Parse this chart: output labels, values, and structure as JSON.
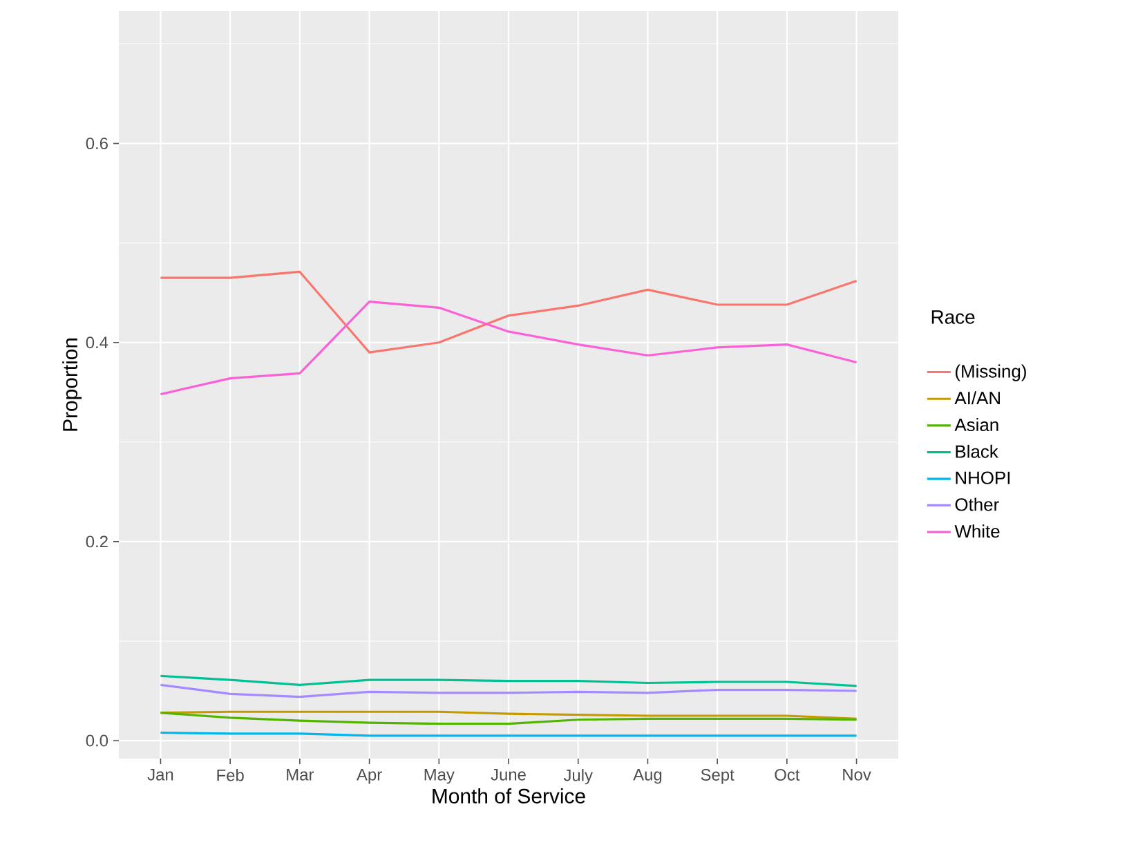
{
  "chart_data": {
    "type": "line",
    "xlabel": "Month of Service",
    "ylabel": "Proportion",
    "legend_title": "Race",
    "categories": [
      "Jan",
      "Feb",
      "Mar",
      "Apr",
      "May",
      "June",
      "July",
      "Aug",
      "Sept",
      "Oct",
      "Nov"
    ],
    "ylim": [
      -0.018,
      0.733
    ],
    "yticks": [
      {
        "value": 0,
        "label": "0.0"
      },
      {
        "value": 0.2,
        "label": "0.2"
      },
      {
        "value": 0.4,
        "label": "0.4"
      },
      {
        "value": 0.6,
        "label": "0.6"
      }
    ],
    "grid": true,
    "legend": "right",
    "marker": "none",
    "line_style": "solid",
    "series": [
      {
        "name": "(Missing)",
        "color": "#f8766d",
        "values": [
          0.465,
          0.465,
          0.471,
          0.39,
          0.4,
          0.427,
          0.437,
          0.453,
          0.438,
          0.438,
          0.462
        ]
      },
      {
        "name": "AI/AN",
        "color": "#c49a00",
        "values": [
          0.028,
          0.029,
          0.029,
          0.029,
          0.029,
          0.027,
          0.026,
          0.025,
          0.025,
          0.025,
          0.022
        ]
      },
      {
        "name": "Asian",
        "color": "#53b400",
        "values": [
          0.028,
          0.023,
          0.02,
          0.018,
          0.017,
          0.017,
          0.021,
          0.022,
          0.022,
          0.022,
          0.021
        ]
      },
      {
        "name": "Black",
        "color": "#00c094",
        "values": [
          0.065,
          0.061,
          0.056,
          0.061,
          0.061,
          0.06,
          0.06,
          0.058,
          0.059,
          0.059,
          0.055
        ]
      },
      {
        "name": "NHOPI",
        "color": "#00b6eb",
        "values": [
          0.008,
          0.007,
          0.007,
          0.005,
          0.005,
          0.005,
          0.005,
          0.005,
          0.005,
          0.005,
          0.005
        ]
      },
      {
        "name": "Other",
        "color": "#a58aff",
        "values": [
          0.056,
          0.047,
          0.044,
          0.049,
          0.048,
          0.048,
          0.049,
          0.048,
          0.051,
          0.051,
          0.05
        ]
      },
      {
        "name": "White",
        "color": "#fb61d7",
        "values": [
          0.348,
          0.364,
          0.369,
          0.441,
          0.435,
          0.411,
          0.398,
          0.387,
          0.395,
          0.398,
          0.38
        ]
      }
    ]
  }
}
